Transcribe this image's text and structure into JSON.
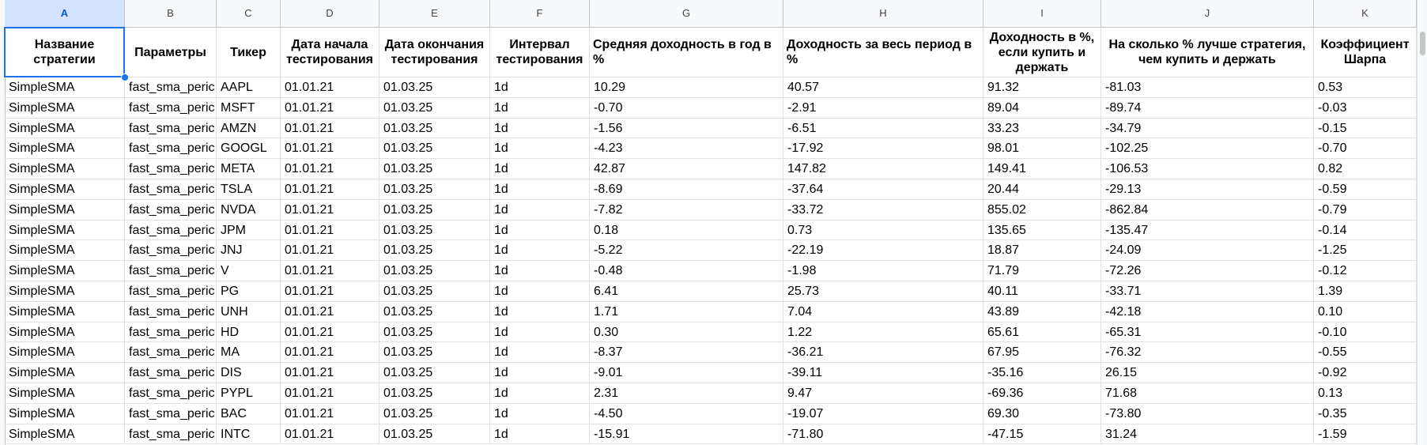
{
  "table": {
    "columns": [
      "A",
      "B",
      "C",
      "D",
      "E",
      "F",
      "G",
      "H",
      "I",
      "J",
      "K"
    ],
    "header": [
      "Название стратегии",
      "Параметры",
      "Тикер",
      "Дата начала тестирования",
      "Дата окончания тестирования",
      "Интервал тестирования",
      "Средняя доходность в год в %",
      "Доходность за весь период в %",
      "Доходность в %, если купить и держать",
      "На сколько % лучше стратегия, чем купить и держать",
      "Коэффициент Шарпа"
    ],
    "rows": [
      [
        "SimpleSMA",
        "fast_sma_peric",
        "AAPL",
        "01.01.21",
        "01.03.25",
        "1d",
        "10.29",
        "40.57",
        "91.32",
        "-81.03",
        "0.53"
      ],
      [
        "SimpleSMA",
        "fast_sma_peric",
        "MSFT",
        "01.01.21",
        "01.03.25",
        "1d",
        "-0.70",
        "-2.91",
        "89.04",
        "-89.74",
        "-0.03"
      ],
      [
        "SimpleSMA",
        "fast_sma_peric",
        "AMZN",
        "01.01.21",
        "01.03.25",
        "1d",
        "-1.56",
        "-6.51",
        "33.23",
        "-34.79",
        "-0.15"
      ],
      [
        "SimpleSMA",
        "fast_sma_peric",
        "GOOGL",
        "01.01.21",
        "01.03.25",
        "1d",
        "-4.23",
        "-17.92",
        "98.01",
        "-102.25",
        "-0.70"
      ],
      [
        "SimpleSMA",
        "fast_sma_peric",
        "META",
        "01.01.21",
        "01.03.25",
        "1d",
        "42.87",
        "147.82",
        "149.41",
        "-106.53",
        "0.82"
      ],
      [
        "SimpleSMA",
        "fast_sma_peric",
        "TSLA",
        "01.01.21",
        "01.03.25",
        "1d",
        "-8.69",
        "-37.64",
        "20.44",
        "-29.13",
        "-0.59"
      ],
      [
        "SimpleSMA",
        "fast_sma_peric",
        "NVDA",
        "01.01.21",
        "01.03.25",
        "1d",
        "-7.82",
        "-33.72",
        "855.02",
        "-862.84",
        "-0.79"
      ],
      [
        "SimpleSMA",
        "fast_sma_peric",
        "JPM",
        "01.01.21",
        "01.03.25",
        "1d",
        "0.18",
        "0.73",
        "135.65",
        "-135.47",
        "-0.14"
      ],
      [
        "SimpleSMA",
        "fast_sma_peric",
        "JNJ",
        "01.01.21",
        "01.03.25",
        "1d",
        "-5.22",
        "-22.19",
        "18.87",
        "-24.09",
        "-1.25"
      ],
      [
        "SimpleSMA",
        "fast_sma_peric",
        "V",
        "01.01.21",
        "01.03.25",
        "1d",
        "-0.48",
        "-1.98",
        "71.79",
        "-72.26",
        "-0.12"
      ],
      [
        "SimpleSMA",
        "fast_sma_peric",
        "PG",
        "01.01.21",
        "01.03.25",
        "1d",
        "6.41",
        "25.73",
        "40.11",
        "-33.71",
        "1.39"
      ],
      [
        "SimpleSMA",
        "fast_sma_peric",
        "UNH",
        "01.01.21",
        "01.03.25",
        "1d",
        "1.71",
        "7.04",
        "43.89",
        "-42.18",
        "0.10"
      ],
      [
        "SimpleSMA",
        "fast_sma_peric",
        "HD",
        "01.01.21",
        "01.03.25",
        "1d",
        "0.30",
        "1.22",
        "65.61",
        "-65.31",
        "-0.10"
      ],
      [
        "SimpleSMA",
        "fast_sma_peric",
        "MA",
        "01.01.21",
        "01.03.25",
        "1d",
        "-8.37",
        "-36.21",
        "67.95",
        "-76.32",
        "-0.55"
      ],
      [
        "SimpleSMA",
        "fast_sma_peric",
        "DIS",
        "01.01.21",
        "01.03.25",
        "1d",
        "-9.01",
        "-39.11",
        "-35.16",
        "26.15",
        "-0.92"
      ],
      [
        "SimpleSMA",
        "fast_sma_peric",
        "PYPL",
        "01.01.21",
        "01.03.25",
        "1d",
        "2.31",
        "9.47",
        "-69.36",
        "71.68",
        "0.13"
      ],
      [
        "SimpleSMA",
        "fast_sma_peric",
        "BAC",
        "01.01.21",
        "01.03.25",
        "1d",
        "-4.50",
        "-19.07",
        "69.30",
        "-73.80",
        "-0.35"
      ],
      [
        "SimpleSMA",
        "fast_sma_peric",
        "INTC",
        "01.01.21",
        "01.03.25",
        "1d",
        "-15.91",
        "-71.80",
        "-47.15",
        "31.24",
        "-1.59"
      ]
    ]
  }
}
